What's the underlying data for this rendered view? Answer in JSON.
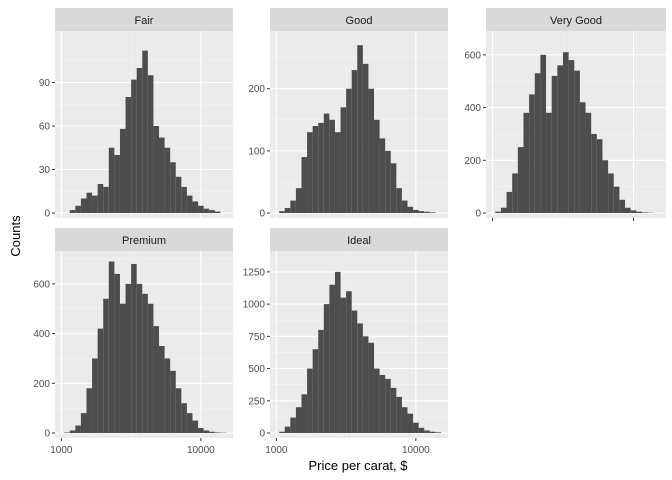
{
  "chart_data": {
    "type": "histogram",
    "facet_layout": "2 rows x 3 columns, facet_wrap with free y scales",
    "shared_x_axis": {
      "label": "Price per carat, $",
      "scale": "log10",
      "lim": [
        900,
        17000
      ],
      "ticks": [
        1000,
        10000
      ],
      "tick_labels": [
        "1000",
        "10000"
      ]
    },
    "y_axis_label": "Counts",
    "bar_color": "#4d4d4d",
    "panel_background": "#ebebeb",
    "strip_background": "#d9d9d9",
    "bin_edges_log10": [
      3.02,
      3.06,
      3.1,
      3.14,
      3.18,
      3.22,
      3.26,
      3.3,
      3.34,
      3.38,
      3.42,
      3.46,
      3.5,
      3.54,
      3.58,
      3.62,
      3.66,
      3.7,
      3.74,
      3.78,
      3.82,
      3.86,
      3.9,
      3.94,
      3.98,
      4.02,
      4.06,
      4.1,
      4.14,
      4.18
    ],
    "facets": [
      {
        "title": "Fair",
        "ylim": [
          0,
          120
        ],
        "yticks": [
          0,
          30,
          60,
          90
        ],
        "counts": [
          0,
          2,
          5,
          10,
          14,
          12,
          20,
          18,
          45,
          40,
          58,
          80,
          92,
          100,
          112,
          95,
          60,
          52,
          45,
          35,
          25,
          18,
          12,
          8,
          5,
          3,
          2,
          1,
          0
        ]
      },
      {
        "title": "Good",
        "ylim": [
          0,
          280
        ],
        "yticks": [
          0,
          100,
          200
        ],
        "counts": [
          3,
          8,
          20,
          40,
          90,
          130,
          140,
          145,
          160,
          150,
          130,
          170,
          200,
          230,
          270,
          240,
          200,
          150,
          120,
          100,
          80,
          40,
          20,
          10,
          5,
          3,
          2,
          1,
          0
        ]
      },
      {
        "title": "Very Good",
        "ylim": [
          0,
          660
        ],
        "yticks": [
          0,
          200,
          400,
          600
        ],
        "counts": [
          5,
          20,
          80,
          150,
          250,
          380,
          450,
          530,
          600,
          380,
          520,
          560,
          610,
          580,
          540,
          420,
          380,
          300,
          280,
          200,
          150,
          100,
          50,
          20,
          10,
          5,
          2,
          1,
          0
        ]
      },
      {
        "title": "Premium",
        "ylim": [
          0,
          700
        ],
        "yticks": [
          0,
          200,
          400,
          600
        ],
        "counts": [
          2,
          10,
          30,
          80,
          180,
          300,
          420,
          540,
          690,
          640,
          520,
          600,
          680,
          600,
          560,
          520,
          430,
          350,
          300,
          250,
          180,
          120,
          80,
          50,
          20,
          10,
          5,
          2,
          1
        ]
      },
      {
        "title": "Ideal",
        "ylim": [
          0,
          1350
        ],
        "yticks": [
          0,
          250,
          500,
          750,
          1000,
          1250
        ],
        "counts": [
          10,
          50,
          120,
          200,
          300,
          500,
          650,
          800,
          1000,
          1150,
          1250,
          1050,
          1100,
          950,
          850,
          750,
          700,
          500,
          450,
          420,
          350,
          280,
          200,
          150,
          80,
          40,
          20,
          10,
          5
        ]
      }
    ]
  }
}
